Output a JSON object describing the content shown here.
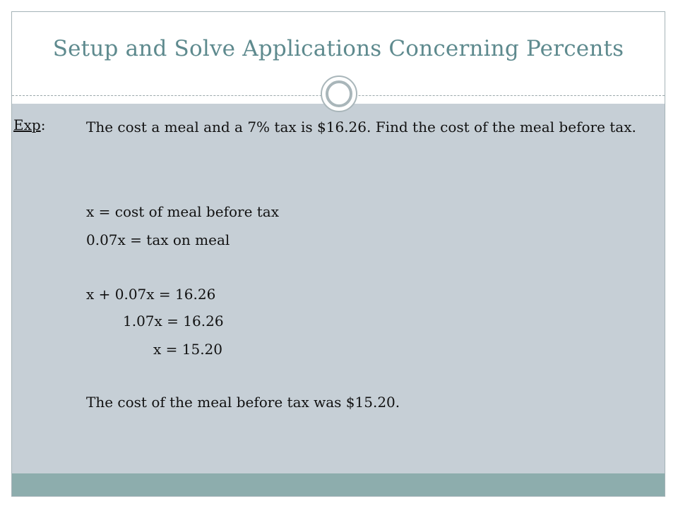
{
  "slide": {
    "title": "Setup and Solve Applications Concerning Percents",
    "example_label": "Exp",
    "example_label_suffix": ":",
    "problem": "The cost a meal and a 7% tax is $16.26.  Find the cost of the meal before tax.",
    "definitions": [
      "x = cost of meal before tax",
      "0.07x = tax on meal"
    ],
    "steps": [
      "x + 0.07x = 16.26",
      "1.07x = 16.26",
      "x = 15.20"
    ],
    "conclusion": "The cost of the meal before tax was $15.20."
  },
  "colors": {
    "title": "#5e8a8e",
    "content_background": "#c6cfd6",
    "footer_bar": "#8dadad",
    "ornament": "#a9b6ba"
  }
}
